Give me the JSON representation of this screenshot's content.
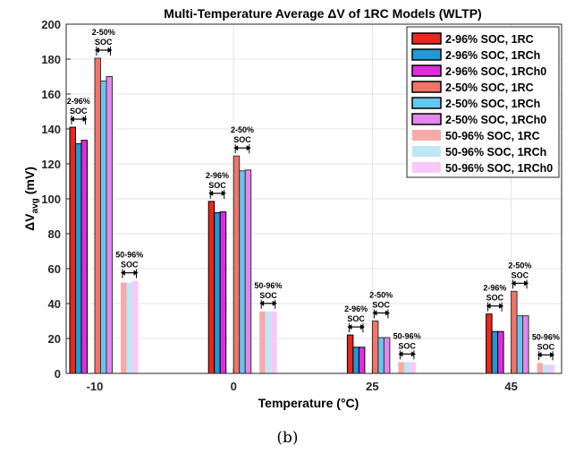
{
  "caption": "(b)",
  "chart_data": {
    "type": "bar",
    "title": "Multi-Temperature Average ΔV of 1RC Models (WLTP)",
    "xlabel": "Temperature (°C)",
    "ylabel_main": "ΔV",
    "ylabel_sub": "avg",
    "ylabel_unit": "(mV)",
    "ylim": [
      0,
      200
    ],
    "yticks": [
      0,
      20,
      40,
      60,
      80,
      100,
      120,
      140,
      160,
      180,
      200
    ],
    "grid": true,
    "legend_position": "top-right",
    "categories": [
      "-10",
      "0",
      "25",
      "45"
    ],
    "group_labels": [
      [
        "2-96%",
        "SOC"
      ],
      [
        "2-50%",
        "SOC"
      ],
      [
        "50-96%",
        "SOC"
      ]
    ],
    "series": [
      {
        "name": "2-96% SOC, 1RC",
        "group": 0,
        "color": "#e8281e",
        "values": [
          141,
          98.5,
          22,
          34
        ]
      },
      {
        "name": "2-96% SOC, 1RCh",
        "group": 0,
        "color": "#1f9ad6",
        "values": [
          131.5,
          92,
          15,
          24
        ]
      },
      {
        "name": "2-96% SOC, 1RCh0",
        "group": 0,
        "color": "#e02ce0",
        "values": [
          133.5,
          92.5,
          15,
          24
        ]
      },
      {
        "name": "2-50% SOC, 1RC",
        "group": 1,
        "color": "#f27469",
        "values": [
          180.5,
          124.5,
          30,
          47
        ]
      },
      {
        "name": "2-50% SOC, 1RCh",
        "group": 1,
        "color": "#66c6f0",
        "values": [
          167.5,
          116,
          20.5,
          33
        ]
      },
      {
        "name": "2-50% SOC, 1RCh0",
        "group": 1,
        "color": "#e486f0",
        "values": [
          170,
          116.5,
          20.5,
          33
        ]
      },
      {
        "name": "50-96% SOC, 1RC",
        "group": 2,
        "color": "#f8a9a9",
        "values": [
          52,
          35.5,
          6.5,
          6
        ]
      },
      {
        "name": "50-96% SOC, 1RCh",
        "group": 2,
        "color": "#bfe6f6",
        "values": [
          52,
          35.5,
          6.5,
          5
        ]
      },
      {
        "name": "50-96% SOC, 1RCh0",
        "group": 2,
        "color": "#fac8f8",
        "values": [
          53,
          35.5,
          6.5,
          5
        ]
      }
    ]
  }
}
